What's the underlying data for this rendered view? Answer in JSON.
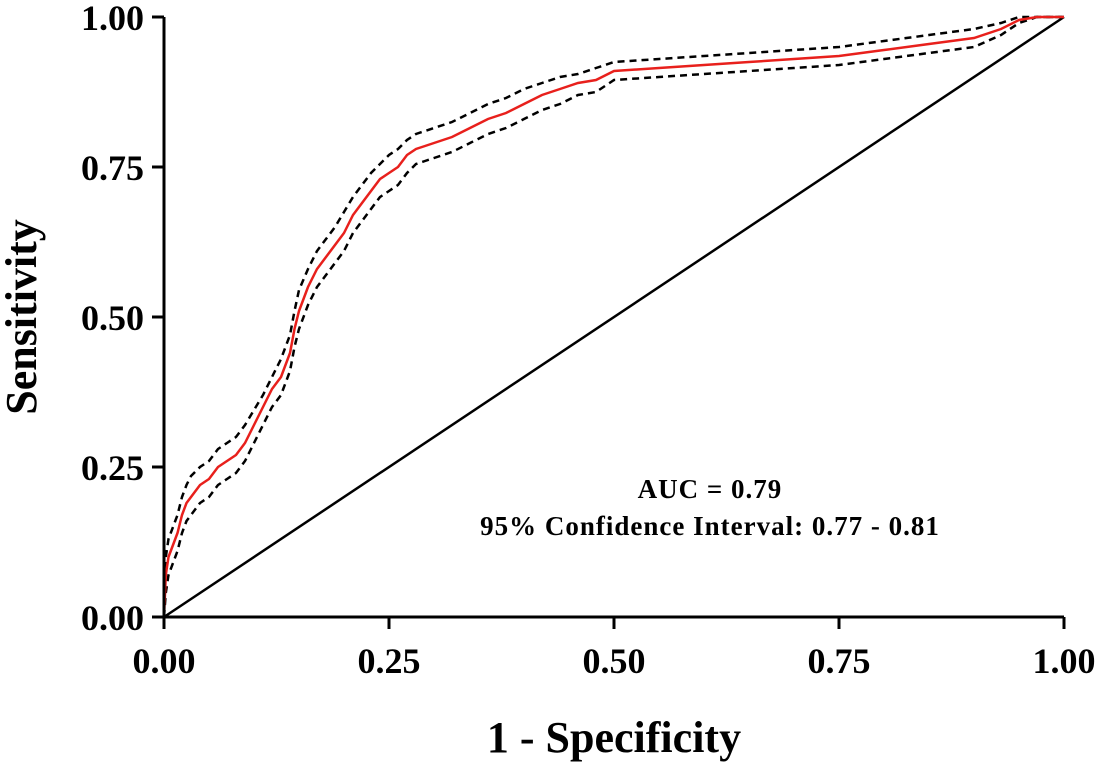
{
  "chart_data": {
    "type": "line",
    "xlabel": "1 - Specificity",
    "ylabel": "Sensitivity",
    "xlim": [
      0,
      1
    ],
    "ylim": [
      0,
      1
    ],
    "x_ticks": [
      "0.00",
      "0.25",
      "0.50",
      "0.75",
      "1.00"
    ],
    "y_ticks": [
      "0.00",
      "0.25",
      "0.50",
      "0.75",
      "1.00"
    ],
    "grid": false,
    "annotations": [
      "AUC = 0.79",
      "95% Confidence Interval: 0.77 - 0.81"
    ],
    "colors": {
      "roc": "#e8201c",
      "ci": "#000000",
      "reference": "#000000"
    },
    "series": [
      {
        "role": "roc",
        "x": [
          0,
          0.002,
          0.005,
          0.01,
          0.015,
          0.02,
          0.025,
          0.03,
          0.04,
          0.05,
          0.06,
          0.07,
          0.08,
          0.09,
          0.1,
          0.11,
          0.12,
          0.13,
          0.14,
          0.145,
          0.15,
          0.16,
          0.17,
          0.18,
          0.19,
          0.2,
          0.21,
          0.22,
          0.23,
          0.24,
          0.25,
          0.26,
          0.27,
          0.28,
          0.29,
          0.3,
          0.32,
          0.34,
          0.36,
          0.38,
          0.4,
          0.42,
          0.44,
          0.46,
          0.48,
          0.5,
          0.55,
          0.6,
          0.65,
          0.7,
          0.75,
          0.8,
          0.85,
          0.9,
          0.93,
          0.95,
          0.97,
          1.0
        ],
        "y": [
          0,
          0.07,
          0.1,
          0.12,
          0.14,
          0.17,
          0.19,
          0.2,
          0.22,
          0.23,
          0.25,
          0.26,
          0.27,
          0.29,
          0.32,
          0.35,
          0.38,
          0.4,
          0.44,
          0.48,
          0.51,
          0.55,
          0.58,
          0.6,
          0.62,
          0.64,
          0.67,
          0.69,
          0.71,
          0.73,
          0.74,
          0.75,
          0.77,
          0.78,
          0.785,
          0.79,
          0.8,
          0.815,
          0.83,
          0.84,
          0.855,
          0.87,
          0.88,
          0.89,
          0.895,
          0.91,
          0.915,
          0.92,
          0.925,
          0.93,
          0.935,
          0.945,
          0.955,
          0.965,
          0.98,
          0.995,
          1.0,
          1.0
        ]
      },
      {
        "role": "ci-upper",
        "x": [
          0,
          0.002,
          0.005,
          0.01,
          0.015,
          0.02,
          0.025,
          0.03,
          0.04,
          0.05,
          0.06,
          0.07,
          0.08,
          0.09,
          0.1,
          0.11,
          0.12,
          0.13,
          0.14,
          0.145,
          0.15,
          0.16,
          0.17,
          0.18,
          0.19,
          0.2,
          0.21,
          0.22,
          0.23,
          0.24,
          0.25,
          0.26,
          0.27,
          0.28,
          0.29,
          0.3,
          0.32,
          0.34,
          0.36,
          0.38,
          0.4,
          0.42,
          0.44,
          0.46,
          0.48,
          0.5,
          0.55,
          0.6,
          0.65,
          0.7,
          0.75,
          0.8,
          0.85,
          0.9,
          0.93,
          0.95,
          0.97,
          1.0
        ],
        "y": [
          0,
          0.1,
          0.13,
          0.15,
          0.17,
          0.2,
          0.22,
          0.235,
          0.25,
          0.26,
          0.28,
          0.29,
          0.3,
          0.32,
          0.345,
          0.37,
          0.4,
          0.43,
          0.47,
          0.51,
          0.545,
          0.58,
          0.61,
          0.63,
          0.65,
          0.675,
          0.7,
          0.72,
          0.74,
          0.755,
          0.77,
          0.78,
          0.795,
          0.805,
          0.81,
          0.815,
          0.825,
          0.84,
          0.855,
          0.865,
          0.88,
          0.89,
          0.9,
          0.905,
          0.915,
          0.925,
          0.93,
          0.935,
          0.94,
          0.945,
          0.95,
          0.96,
          0.97,
          0.98,
          0.99,
          1.0,
          1.0,
          1.0
        ]
      },
      {
        "role": "ci-lower",
        "x": [
          0,
          0.002,
          0.005,
          0.01,
          0.015,
          0.02,
          0.025,
          0.03,
          0.04,
          0.05,
          0.06,
          0.07,
          0.08,
          0.09,
          0.1,
          0.11,
          0.12,
          0.13,
          0.14,
          0.145,
          0.15,
          0.16,
          0.17,
          0.18,
          0.19,
          0.2,
          0.21,
          0.22,
          0.23,
          0.24,
          0.25,
          0.26,
          0.27,
          0.28,
          0.29,
          0.3,
          0.32,
          0.34,
          0.36,
          0.38,
          0.4,
          0.42,
          0.44,
          0.46,
          0.48,
          0.5,
          0.55,
          0.6,
          0.65,
          0.7,
          0.75,
          0.8,
          0.85,
          0.9,
          0.93,
          0.95,
          0.97,
          1.0
        ],
        "y": [
          0,
          0.04,
          0.07,
          0.09,
          0.11,
          0.14,
          0.16,
          0.17,
          0.19,
          0.2,
          0.22,
          0.23,
          0.24,
          0.26,
          0.29,
          0.32,
          0.35,
          0.37,
          0.41,
          0.45,
          0.48,
          0.52,
          0.55,
          0.57,
          0.59,
          0.61,
          0.64,
          0.66,
          0.68,
          0.7,
          0.71,
          0.72,
          0.74,
          0.755,
          0.76,
          0.765,
          0.775,
          0.79,
          0.805,
          0.815,
          0.83,
          0.845,
          0.855,
          0.87,
          0.875,
          0.895,
          0.9,
          0.905,
          0.91,
          0.915,
          0.92,
          0.93,
          0.94,
          0.95,
          0.97,
          0.99,
          1.0,
          1.0
        ]
      },
      {
        "role": "reference",
        "x": [
          0,
          1
        ],
        "y": [
          0,
          1
        ]
      }
    ]
  }
}
